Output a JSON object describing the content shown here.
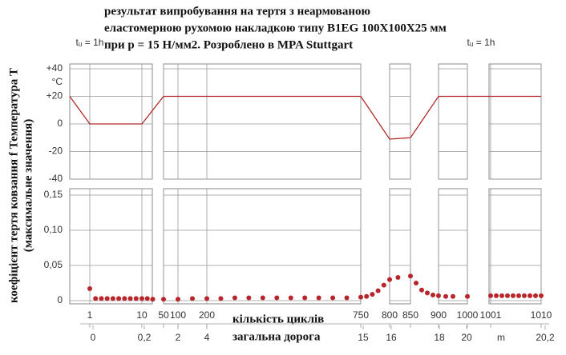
{
  "chart_data": {
    "type": "line",
    "title": [
      "результат випробування на тертя з неармованою",
      "еластомерною рухомою накладкою типу B1EG 100X100X25 мм",
      "при p = 15 H/мм2. Розроблено в MPA Stuttgart"
    ],
    "ylabel": [
      "коефіцієнт тертя ковзання f Температура T",
      "(максимальне значення)"
    ],
    "xlabel": "кількість циклів",
    "x2label": "загальна дорога",
    "yunit": "°C",
    "x2unit": "m",
    "annotations": [
      "tᵤ = 1h",
      "tᵤ = 1h"
    ],
    "xticks": [
      1,
      10,
      50,
      100,
      200,
      750,
      800,
      850,
      900,
      1000,
      1001,
      1010
    ],
    "x2ticks": [
      0,
      {
        "value": 0.2,
        "label": "0,2"
      },
      2,
      4,
      15,
      16,
      18,
      20,
      {
        "value": 20.2,
        "label": "20,2"
      }
    ],
    "ylim": [
      -40,
      40
    ],
    "yticks": [
      {
        "value": 40,
        "label": "+40"
      },
      {
        "value": 20,
        "label": "+20"
      },
      0,
      -20,
      -40
    ],
    "y2lim": [
      0,
      0.15
    ],
    "y2ticks": [
      0,
      {
        "value": 0.05,
        "label": "0,05"
      },
      {
        "value": 0.1,
        "label": "0,10"
      },
      {
        "value": 0.15,
        "label": "0,15"
      }
    ],
    "series": [
      {
        "color": "#b22a2a",
        "x": [
          0,
          1,
          10,
          50,
          750,
          800,
          850,
          900,
          1010
        ],
        "values": [
          20,
          0,
          0,
          20,
          20,
          -11,
          -10,
          20,
          20
        ]
      },
      {
        "color": "#b8262b",
        "axis": "y2",
        "marker": "circle",
        "x": [
          1,
          2,
          3,
          4,
          5,
          6,
          7,
          8,
          9,
          10,
          20,
          30,
          50,
          100,
          150,
          200,
          250,
          300,
          350,
          400,
          450,
          500,
          550,
          600,
          650,
          700,
          750,
          760,
          770,
          780,
          790,
          800,
          820,
          850,
          860,
          870,
          880,
          890,
          900,
          925,
          950,
          1000,
          1001,
          1002,
          1003,
          1004,
          1005,
          1006,
          1007,
          1008,
          1009,
          1010
        ],
        "values": [
          0.017,
          0.003,
          0.003,
          0.003,
          0.003,
          0.003,
          0.003,
          0.003,
          0.003,
          0.003,
          0.003,
          0.002,
          0.002,
          0.002,
          0.003,
          0.003,
          0.003,
          0.004,
          0.004,
          0.004,
          0.004,
          0.004,
          0.004,
          0.004,
          0.004,
          0.004,
          0.005,
          0.006,
          0.009,
          0.014,
          0.022,
          0.03,
          0.033,
          0.035,
          0.025,
          0.015,
          0.011,
          0.008,
          0.007,
          0.006,
          0.006,
          0.006,
          0.007,
          0.007,
          0.007,
          0.007,
          0.007,
          0.007,
          0.007,
          0.007,
          0.007,
          0.007
        ]
      }
    ]
  }
}
